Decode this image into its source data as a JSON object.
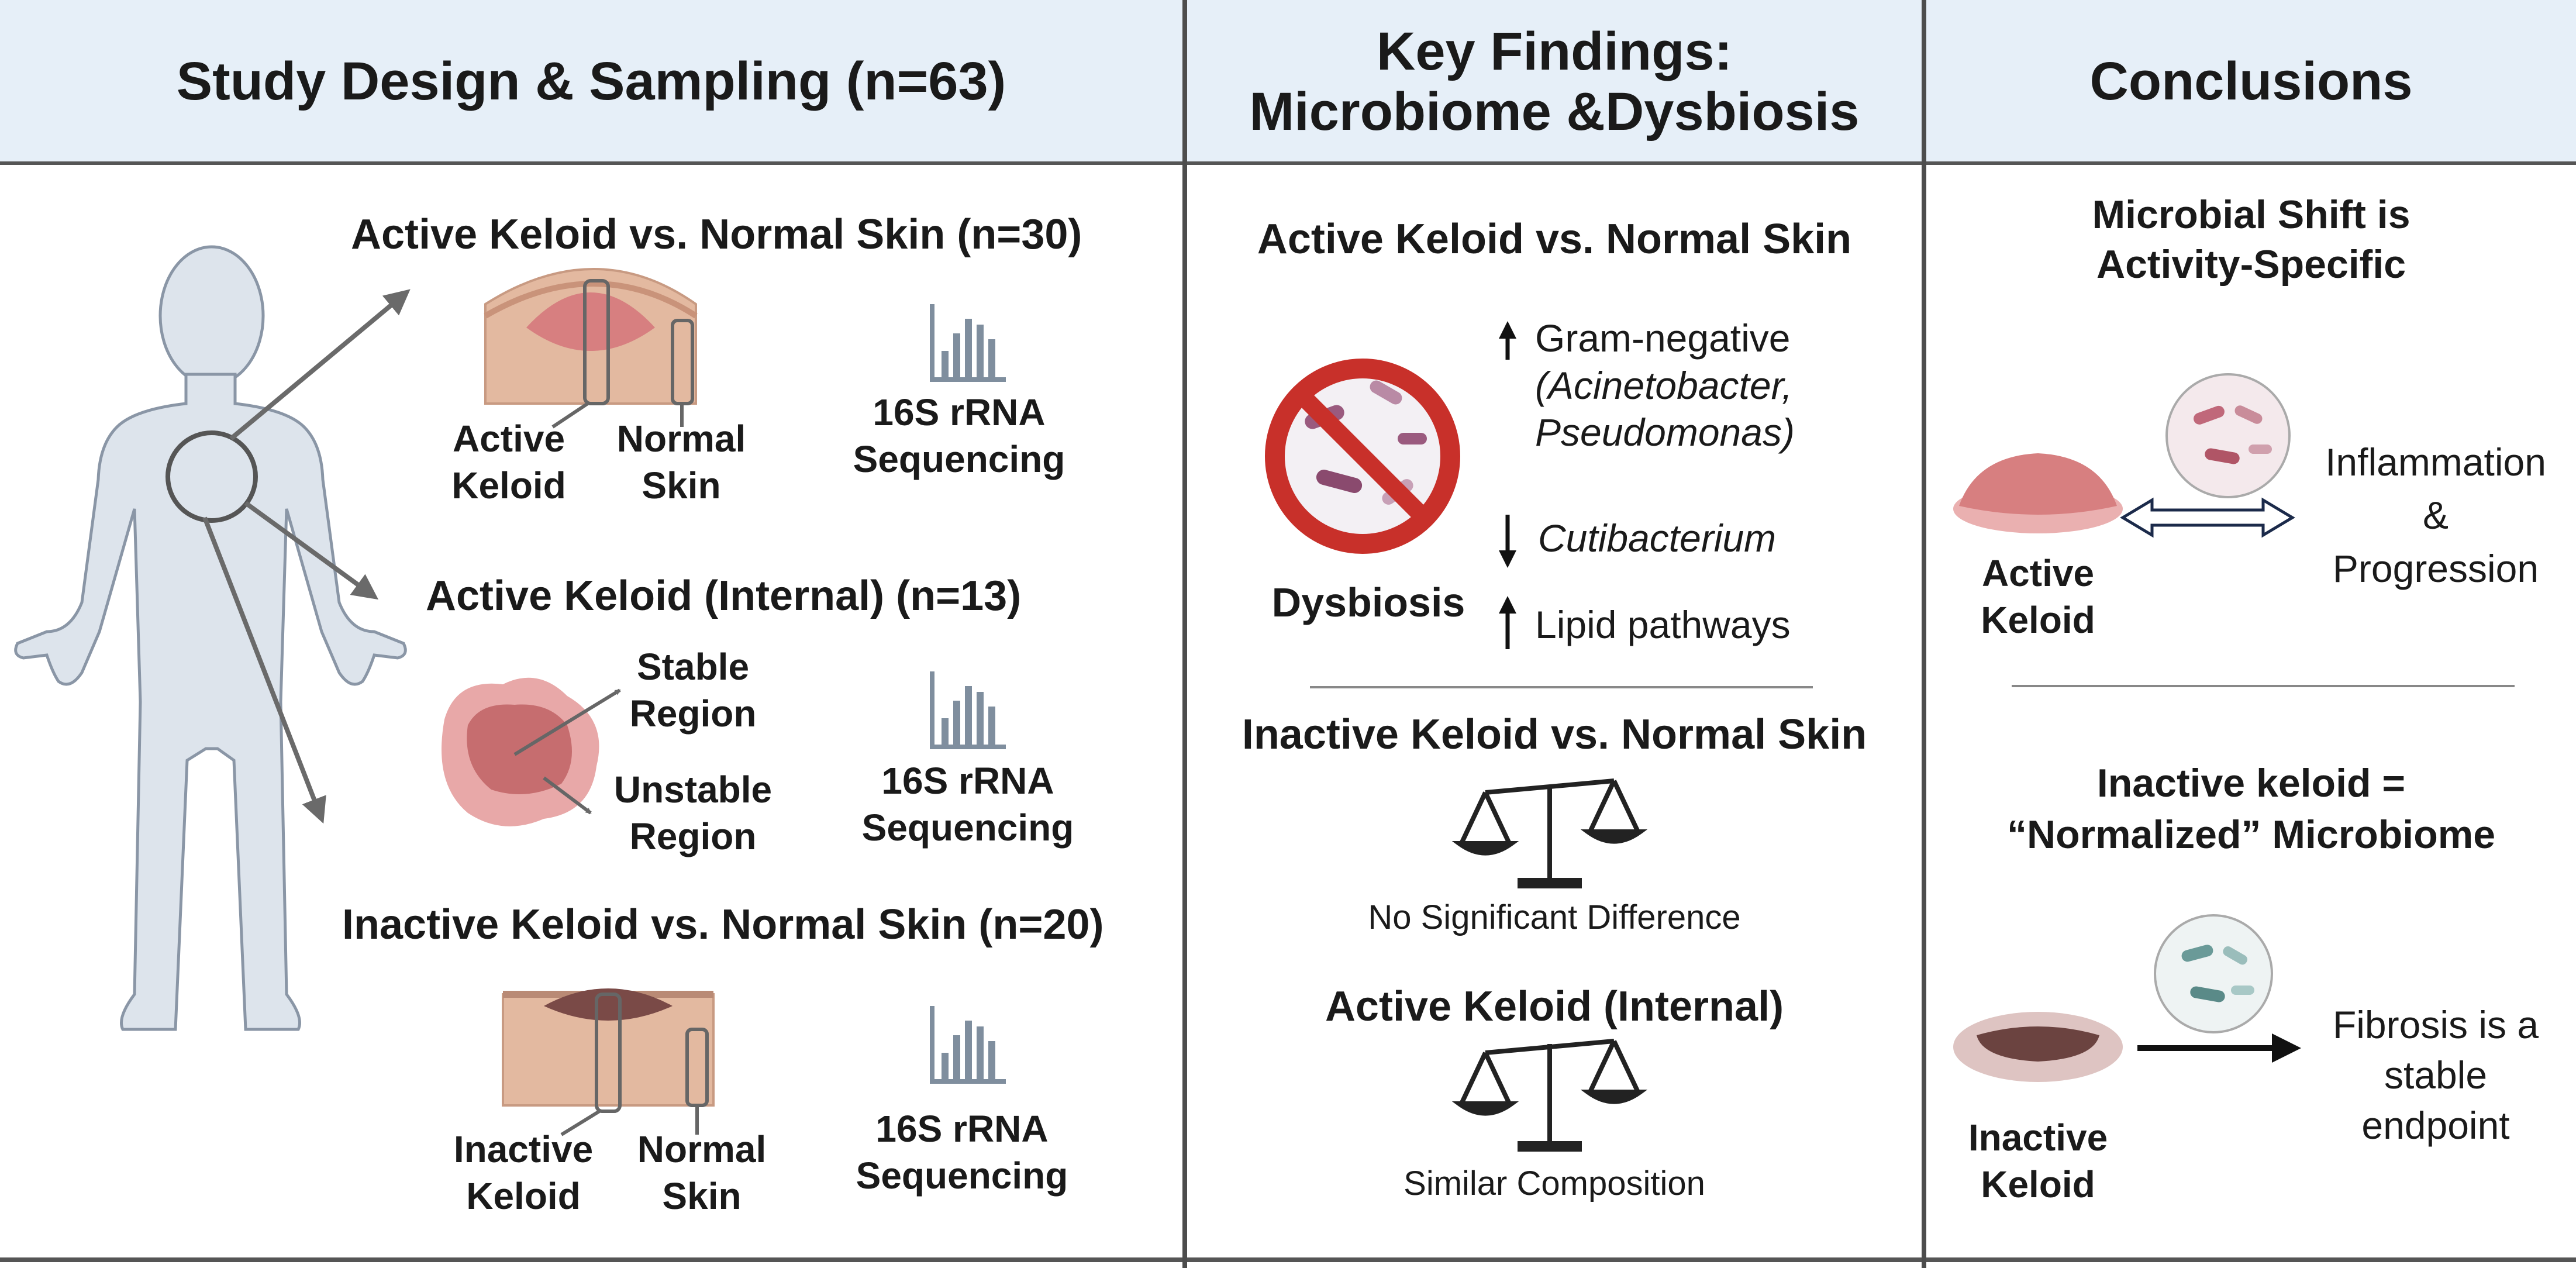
{
  "columns": {
    "design": {
      "title": "Study Design & Sampling (n=63)",
      "group1": {
        "title": "Active Keloid vs. Normal Skin (n=30)",
        "label_a_line1": "Active",
        "label_a_line2": "Keloid",
        "label_b_line1": "Normal",
        "label_b_line2": "Skin",
        "seq_line1": "16S rRNA",
        "seq_line2": "Sequencing"
      },
      "group2": {
        "title": "Active Keloid (Internal)  (n=13)",
        "label_a_line1": "Stable",
        "label_a_line2": "Region",
        "label_b_line1": "Unstable",
        "label_b_line2": "Region",
        "seq_line1": "16S rRNA",
        "seq_line2": "Sequencing"
      },
      "group3": {
        "title": "Inactive Keloid vs. Normal Skin (n=20)",
        "label_a_line1": "Inactive",
        "label_a_line2": "Keloid",
        "label_b_line1": "Normal",
        "label_b_line2": "Skin",
        "seq_line1": "16S rRNA",
        "seq_line2": "Sequencing"
      }
    },
    "findings": {
      "title_line1": "Key Findings:",
      "title_line2": "Microbiome &Dysbiosis",
      "active_title": "Active Keloid vs. Normal Skin",
      "dysbiosis_label": "Dysbiosis",
      "item1_line1": "Gram-negative",
      "item1_line2": "(Acinetobacter,",
      "item1_line3": "Pseudomonas)",
      "item2": "Cutibacterium",
      "item3": "Lipid pathways",
      "inactive_title": "Inactive Keloid vs. Normal Skin",
      "inactive_result": "No Significant Difference",
      "internal_title": "Active Keloid (Internal)",
      "internal_result": "Similar Composition"
    },
    "conclusions": {
      "title": "Conclusions",
      "c1_line1": "Microbial Shift is",
      "c1_line2": "Activity-Specific",
      "c1_keloid_line1": "Active",
      "c1_keloid_line2": "Keloid",
      "c1_out_line1": "Inflammation",
      "c1_out_line2": "&",
      "c1_out_line3": "Progression",
      "c2_line1": "Inactive keloid =",
      "c2_line2": "“Normalized” Microbiome",
      "c2_keloid_line1": "Inactive",
      "c2_keloid_line2": "Keloid",
      "c2_out_line1": "Fibrosis is a",
      "c2_out_line2": "stable",
      "c2_out_line3": "endpoint"
    }
  },
  "colors": {
    "header_bg": "#e6eff8",
    "divider": "#4d4d4d",
    "skin": "#e9c4ad",
    "active_keloid": "#d77f80",
    "inactive_keloid": "#7a4a47",
    "prohibit_red": "#c8302a",
    "bacteria_purple": "#9a5a7e",
    "bacteria_teal": "#6a9a98",
    "body_fill": "#dde4ec"
  },
  "icons": [
    "human-body-icon",
    "skin-cross-section-icon",
    "sequencing-bars-icon",
    "keloid-top-view-icon",
    "prohibited-bacteria-icon",
    "arrow-up-icon",
    "arrow-down-icon",
    "balance-scale-icon",
    "microbe-dish-icon",
    "double-arrow-icon",
    "right-arrow-icon"
  ]
}
